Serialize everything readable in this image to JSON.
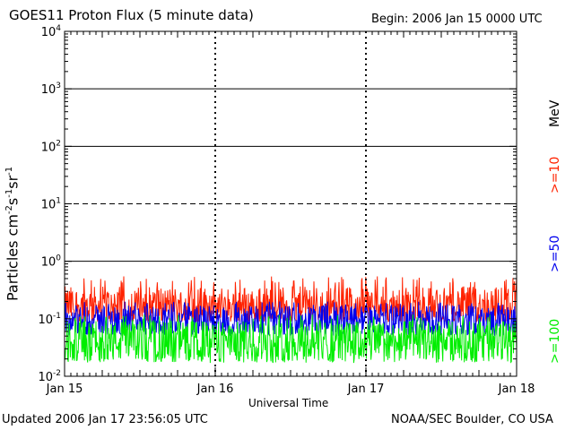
{
  "chart_data": {
    "type": "line",
    "title": "GOES11 Proton Flux (5 minute data)",
    "begin_label": "Begin: 2006 Jan 15 0000 UTC",
    "xlabel": "Universal Time",
    "ylabel": {
      "base": "Particles cm",
      "exp1": "-2",
      "s": "s",
      "exp2": "-1",
      "sr": "sr",
      "exp3": "-1"
    },
    "y_scale": "log",
    "ylim": [
      0.01,
      10000
    ],
    "y_ticks": [
      {
        "base": "10",
        "exp": "-2",
        "value": 0.01
      },
      {
        "base": "10",
        "exp": "-1",
        "value": 0.1
      },
      {
        "base": "10",
        "exp": "0",
        "value": 1
      },
      {
        "base": "10",
        "exp": "1",
        "value": 10
      },
      {
        "base": "10",
        "exp": "2",
        "value": 100
      },
      {
        "base": "10",
        "exp": "3",
        "value": 1000
      },
      {
        "base": "10",
        "exp": "4",
        "value": 10000
      }
    ],
    "x_days": [
      0,
      3
    ],
    "x_ticks": [
      {
        "label": "Jan 15",
        "day": 0
      },
      {
        "label": "Jan 16",
        "day": 1
      },
      {
        "label": "Jan 17",
        "day": 2
      },
      {
        "label": "Jan 18",
        "day": 3
      }
    ],
    "gridlines": [
      {
        "value": 1,
        "style": "solid"
      },
      {
        "value": 10,
        "style": "dashed"
      },
      {
        "value": 100,
        "style": "solid"
      },
      {
        "value": 1000,
        "style": "solid"
      }
    ],
    "series": [
      {
        "name": ">=10",
        "color": "#ff2200",
        "mean": 0.17,
        "min": 0.09,
        "max": 0.55
      },
      {
        "name": ">=50",
        "color": "#0000ee",
        "mean": 0.095,
        "min": 0.05,
        "max": 0.2
      },
      {
        "name": ">=100",
        "color": "#00ee00",
        "mean": 0.04,
        "min": 0.017,
        "max": 0.12
      }
    ],
    "legend_unit": "MeV",
    "legend": [
      ">=10",
      ">=50",
      ">=100"
    ],
    "legend_colors": [
      "#ff2200",
      "#0000ee",
      "#00ee00"
    ]
  },
  "footer": {
    "updated": "Updated 2006 Jan 17 23:56:05 UTC",
    "source": "NOAA/SEC Boulder, CO USA"
  }
}
